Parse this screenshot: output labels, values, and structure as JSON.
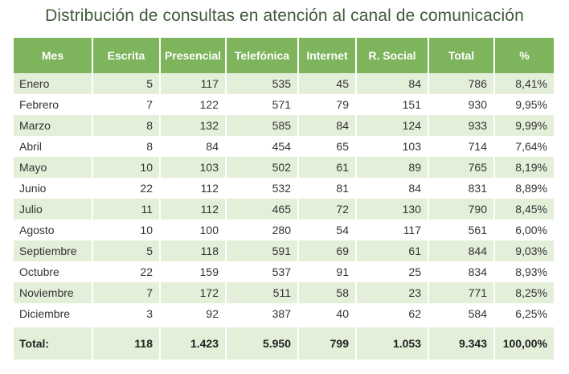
{
  "title": "Distribución de consultas en atención al canal de comunicación",
  "headers": [
    "Mes",
    "Escrita",
    "Presencial",
    "Telefónica",
    "Internet",
    "R. Social",
    "Total",
    "%"
  ],
  "rows": [
    [
      "Enero",
      "5",
      "117",
      "535",
      "45",
      "84",
      "786",
      "8,41%"
    ],
    [
      "Febrero",
      "7",
      "122",
      "571",
      "79",
      "151",
      "930",
      "9,95%"
    ],
    [
      "Marzo",
      "8",
      "132",
      "585",
      "84",
      "124",
      "933",
      "9,99%"
    ],
    [
      "Abril",
      "8",
      "84",
      "454",
      "65",
      "103",
      "714",
      "7,64%"
    ],
    [
      "Mayo",
      "10",
      "103",
      "502",
      "61",
      "89",
      "765",
      "8,19%"
    ],
    [
      "Junio",
      "22",
      "112",
      "532",
      "81",
      "84",
      "831",
      "8,89%"
    ],
    [
      "Julio",
      "11",
      "112",
      "465",
      "72",
      "130",
      "790",
      "8,45%"
    ],
    [
      "Agosto",
      "10",
      "100",
      "280",
      "54",
      "117",
      "561",
      "6,00%"
    ],
    [
      "Septiembre",
      "5",
      "118",
      "591",
      "69",
      "61",
      "844",
      "9,03%"
    ],
    [
      "Octubre",
      "22",
      "159",
      "537",
      "91",
      "25",
      "834",
      "8,93%"
    ],
    [
      "Noviembre",
      "7",
      "172",
      "511",
      "58",
      "23",
      "771",
      "8,25%"
    ],
    [
      "Diciembre",
      "3",
      "92",
      "387",
      "40",
      "62",
      "584",
      "6,25%"
    ]
  ],
  "total": [
    "Total:",
    "118",
    "1.423",
    "5.950",
    "799",
    "1.053",
    "9.343",
    "100,00%"
  ],
  "colors": {
    "header": "#7db45c",
    "stripe": "#e3efd8",
    "title": "#3f5a3a"
  }
}
